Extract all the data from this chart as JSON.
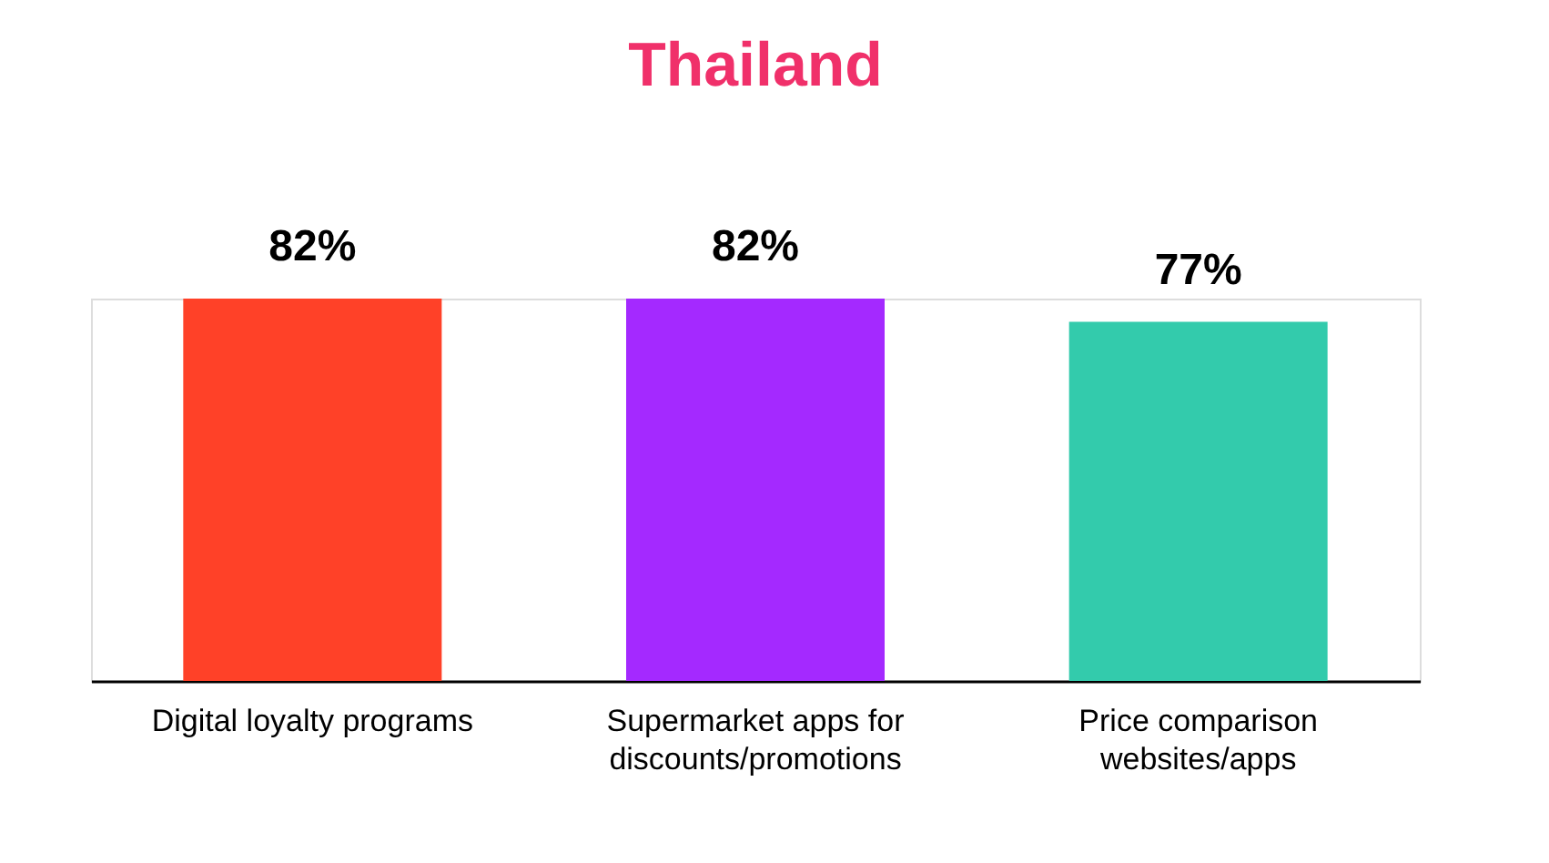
{
  "chart_data": {
    "type": "bar",
    "title": "Thailand",
    "categories": [
      "Digital loyalty programs",
      "Supermarket apps for discounts/promotions",
      "Price comparison websites/apps"
    ],
    "values": [
      82,
      82,
      77
    ],
    "colors": [
      "#ff4128",
      "#a429ff",
      "#33cbac"
    ],
    "value_labels": [
      "82%",
      "82%",
      "77%"
    ]
  }
}
